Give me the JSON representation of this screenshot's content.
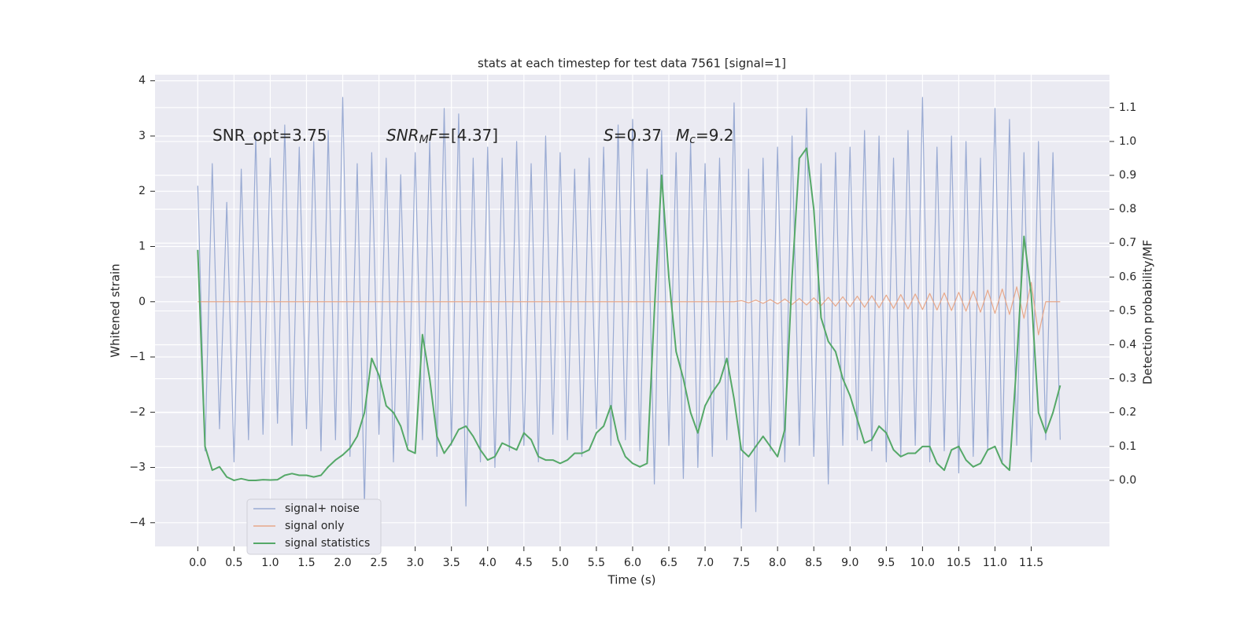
{
  "chart_data": {
    "type": "line",
    "title": "stats at each timestep for test data 7561 [signal=1]",
    "x_label": "Time (s)",
    "y_label": "Whitened strain",
    "y2_label": "Detection probability/MF",
    "annotations": [
      [
        {
          "text": "SNR_opt=3.75"
        }
      ],
      [
        {
          "text": "SNR",
          "italic": true
        },
        {
          "text": "M",
          "italic": true,
          "sub": true
        },
        {
          "text": "F",
          "italic": true
        },
        {
          "text": "=[4.37]"
        }
      ],
      [
        {
          "text": "S",
          "italic": true
        },
        {
          "text": "=0.37"
        }
      ],
      [
        {
          "text": "M",
          "italic": true
        },
        {
          "text": "c",
          "italic": true,
          "sub": true
        },
        {
          "text": "=9.2"
        }
      ]
    ],
    "x": [
      0.0,
      0.1,
      0.2,
      0.3,
      0.4,
      0.5,
      0.6,
      0.7,
      0.8,
      0.9,
      1.0,
      1.1,
      1.2,
      1.3,
      1.4,
      1.5,
      1.6,
      1.7,
      1.8,
      1.9,
      2.0,
      2.1,
      2.2,
      2.3,
      2.4,
      2.5,
      2.6,
      2.7,
      2.8,
      2.9,
      3.0,
      3.1,
      3.2,
      3.3,
      3.4,
      3.5,
      3.6,
      3.7,
      3.8,
      3.9,
      4.0,
      4.1,
      4.2,
      4.3,
      4.4,
      4.5,
      4.6,
      4.7,
      4.8,
      4.9,
      5.0,
      5.1,
      5.2,
      5.3,
      5.4,
      5.5,
      5.6,
      5.7,
      5.8,
      5.9,
      6.0,
      6.1,
      6.2,
      6.3,
      6.4,
      6.5,
      6.6,
      6.7,
      6.8,
      6.9,
      7.0,
      7.1,
      7.2,
      7.3,
      7.4,
      7.5,
      7.6,
      7.7,
      7.8,
      7.9,
      8.0,
      8.1,
      8.2,
      8.3,
      8.4,
      8.5,
      8.6,
      8.7,
      8.8,
      8.9,
      9.0,
      9.1,
      9.2,
      9.3,
      9.4,
      9.5,
      9.6,
      9.7,
      9.8,
      9.9,
      10.0,
      10.1,
      10.2,
      10.3,
      10.4,
      10.5,
      10.6,
      10.7,
      10.8,
      10.9,
      11.0,
      11.1,
      11.2,
      11.3,
      11.4,
      11.5,
      11.6,
      11.7,
      11.8,
      11.9
    ],
    "series": [
      {
        "name": "signal+ noise",
        "color": "#9aabd3",
        "values": [
          2.1,
          -2.7,
          2.5,
          -2.3,
          1.8,
          -2.9,
          2.4,
          -2.5,
          3.0,
          -2.4,
          2.6,
          -2.2,
          3.2,
          -2.6,
          2.8,
          -2.3,
          2.9,
          -2.7,
          3.1,
          -2.5,
          3.7,
          -2.8,
          2.5,
          -3.7,
          2.7,
          -2.4,
          2.6,
          -2.9,
          2.3,
          -2.6,
          2.7,
          -2.5,
          2.9,
          -2.8,
          3.5,
          -2.6,
          3.4,
          -3.7,
          2.6,
          -2.9,
          2.8,
          -3.0,
          2.6,
          -2.7,
          2.9,
          -2.6,
          2.5,
          -2.9,
          3.0,
          -2.4,
          2.7,
          -2.5,
          2.4,
          -2.8,
          2.6,
          -2.3,
          2.8,
          -2.6,
          3.2,
          -2.5,
          3.3,
          -2.7,
          2.4,
          -3.3,
          3.1,
          -2.6,
          2.7,
          -3.2,
          2.9,
          -3.0,
          2.5,
          -2.8,
          2.6,
          -2.5,
          3.6,
          -4.1,
          2.4,
          -3.8,
          2.6,
          -2.7,
          2.8,
          -2.9,
          3.0,
          -2.6,
          3.5,
          -2.8,
          2.5,
          -3.3,
          2.7,
          -2.6,
          2.8,
          -2.5,
          3.1,
          -2.7,
          3.0,
          -2.9,
          2.6,
          -2.8,
          3.1,
          -2.6,
          3.7,
          -2.9,
          2.8,
          -2.7,
          3.0,
          -3.1,
          2.9,
          -2.8,
          2.6,
          -2.7,
          3.5,
          -2.9,
          3.3,
          -2.6,
          2.7,
          -2.9,
          2.9,
          -2.5,
          2.7,
          -2.5
        ]
      },
      {
        "name": "signal only",
        "color": "#e8a88a",
        "values": [
          0,
          0,
          0,
          0,
          0,
          0,
          0,
          0,
          0,
          0,
          0,
          0,
          0,
          0,
          0,
          0,
          0,
          0,
          0,
          0,
          0,
          0,
          0,
          0,
          0,
          0,
          0,
          0,
          0,
          0,
          0,
          0,
          0,
          0,
          0,
          0,
          0,
          0,
          0,
          0,
          0,
          0,
          0,
          0,
          0,
          0,
          0,
          0,
          0,
          0,
          0,
          0,
          0,
          0,
          0,
          0,
          0,
          0,
          0,
          0,
          0,
          0,
          0,
          0,
          0,
          0,
          0,
          0,
          0,
          0,
          0,
          0,
          0,
          0,
          0,
          0.02,
          -0.02,
          0.03,
          -0.03,
          0.04,
          -0.04,
          0.05,
          -0.05,
          0.06,
          -0.06,
          0.07,
          -0.07,
          0.08,
          -0.08,
          0.09,
          -0.09,
          0.1,
          -0.1,
          0.11,
          -0.11,
          0.12,
          -0.12,
          0.13,
          -0.13,
          0.14,
          -0.14,
          0.15,
          -0.15,
          0.16,
          -0.16,
          0.17,
          -0.17,
          0.19,
          -0.19,
          0.21,
          -0.21,
          0.23,
          -0.23,
          0.27,
          -0.3,
          0.35,
          -0.6,
          0,
          0,
          0
        ]
      },
      {
        "name": "signal statistics",
        "color": "#55a868",
        "axis": "y2",
        "values": [
          0.68,
          0.1,
          0.03,
          0.04,
          0.01,
          0.0,
          0.005,
          0.0,
          0.0,
          0.002,
          0.001,
          0.002,
          0.015,
          0.02,
          0.015,
          0.015,
          0.01,
          0.015,
          0.04,
          0.06,
          0.075,
          0.095,
          0.13,
          0.2,
          0.36,
          0.31,
          0.22,
          0.2,
          0.16,
          0.09,
          0.08,
          0.43,
          0.3,
          0.13,
          0.08,
          0.11,
          0.15,
          0.16,
          0.13,
          0.09,
          0.06,
          0.07,
          0.11,
          0.1,
          0.09,
          0.14,
          0.12,
          0.07,
          0.06,
          0.06,
          0.05,
          0.06,
          0.08,
          0.08,
          0.09,
          0.14,
          0.16,
          0.22,
          0.12,
          0.07,
          0.05,
          0.04,
          0.05,
          0.5,
          0.9,
          0.6,
          0.38,
          0.3,
          0.2,
          0.14,
          0.22,
          0.26,
          0.29,
          0.36,
          0.24,
          0.09,
          0.07,
          0.1,
          0.13,
          0.1,
          0.07,
          0.15,
          0.6,
          0.95,
          0.98,
          0.8,
          0.48,
          0.41,
          0.38,
          0.3,
          0.25,
          0.18,
          0.11,
          0.12,
          0.16,
          0.14,
          0.09,
          0.07,
          0.08,
          0.08,
          0.1,
          0.1,
          0.05,
          0.03,
          0.09,
          0.1,
          0.06,
          0.04,
          0.05,
          0.09,
          0.1,
          0.05,
          0.03,
          0.35,
          0.72,
          0.55,
          0.2,
          0.14,
          0.2,
          0.28
        ]
      }
    ],
    "xlim": [
      -0.59,
      12.58
    ],
    "xticks": [
      {
        "value": 0,
        "label": "0.0"
      },
      0.5,
      {
        "value": 1,
        "label": "1.0"
      },
      1.5,
      {
        "value": 2,
        "label": "2.0"
      },
      2.5,
      {
        "value": 3,
        "label": "3.0"
      },
      3.5,
      {
        "value": 4,
        "label": "4.0"
      },
      4.5,
      {
        "value": 5,
        "label": "5.0"
      },
      5.5,
      {
        "value": 6,
        "label": "6.0"
      },
      6.5,
      {
        "value": 7,
        "label": "7.0"
      },
      7.5,
      {
        "value": 8,
        "label": "8.0"
      },
      8.5,
      {
        "value": 9,
        "label": "9.0"
      },
      9.5,
      {
        "value": 10,
        "label": "10.0"
      },
      10.5,
      {
        "value": 11,
        "label": "11.0"
      },
      11.5
    ],
    "ylim": [
      -4.43,
      4.11
    ],
    "yticks": [
      {
        "value": -4,
        "label": "−4"
      },
      {
        "value": -3,
        "label": "−3"
      },
      {
        "value": -2,
        "label": "−2"
      },
      {
        "value": -1,
        "label": "−1"
      },
      0,
      1,
      2,
      3,
      4
    ],
    "y2lim": [
      -0.195,
      1.197
    ],
    "y2ticks": [
      {
        "value": 0,
        "label": "0.0"
      },
      0.1,
      0.2,
      0.3,
      0.4,
      0.5,
      0.6,
      0.7,
      0.8,
      0.9,
      {
        "value": 1,
        "label": "1.0"
      },
      1.1
    ],
    "grid": true,
    "legend": "lower left"
  }
}
